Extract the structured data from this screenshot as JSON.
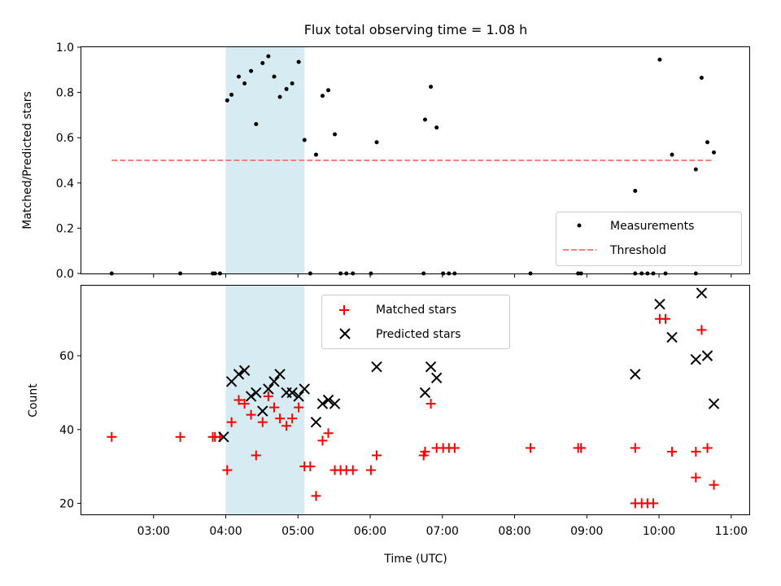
{
  "chart_data": [
    {
      "type": "scatter",
      "title": "Flux total observing time = 1.08 h",
      "xlabel": "",
      "ylabel": "Matched/Predicted stars",
      "xlim": [
        2.0,
        11.25
      ],
      "ylim": [
        0,
        1.0
      ],
      "yticks": [
        0.0,
        0.2,
        0.4,
        0.6,
        0.8,
        1.0
      ],
      "yticklabels": [
        "0.0",
        "0.2",
        "0.4",
        "0.6",
        "0.8",
        "1.0"
      ],
      "xticks": [
        3,
        4,
        5,
        6,
        7,
        8,
        9,
        10,
        11
      ],
      "shaded_span": [
        4.0,
        5.09
      ],
      "shade_color": "#add8e6",
      "legend_location": "lower right",
      "series": [
        {
          "name": "Measurements",
          "marker": "dot",
          "color": "#000000",
          "points": [
            [
              2.42,
              0.0
            ],
            [
              3.37,
              0.0
            ],
            [
              3.82,
              0.0
            ],
            [
              3.85,
              0.0
            ],
            [
              3.92,
              0.0
            ],
            [
              4.02,
              0.765
            ],
            [
              4.08,
              0.79
            ],
            [
              4.18,
              0.87
            ],
            [
              4.26,
              0.84
            ],
            [
              4.35,
              0.895
            ],
            [
              4.42,
              0.66
            ],
            [
              4.51,
              0.93
            ],
            [
              4.59,
              0.96
            ],
            [
              4.67,
              0.87
            ],
            [
              4.75,
              0.78
            ],
            [
              4.84,
              0.815
            ],
            [
              4.92,
              0.84
            ],
            [
              5.01,
              0.935
            ],
            [
              5.09,
              0.59
            ],
            [
              5.17,
              0.0
            ],
            [
              5.25,
              0.525
            ],
            [
              5.34,
              0.785
            ],
            [
              5.42,
              0.81
            ],
            [
              5.51,
              0.615
            ],
            [
              5.59,
              0.0
            ],
            [
              5.67,
              0.0
            ],
            [
              5.76,
              0.0
            ],
            [
              6.01,
              0.0
            ],
            [
              6.09,
              0.58
            ],
            [
              6.74,
              0.0
            ],
            [
              6.76,
              0.68
            ],
            [
              6.84,
              0.825
            ],
            [
              6.92,
              0.645
            ],
            [
              7.01,
              0.0
            ],
            [
              7.09,
              0.0
            ],
            [
              7.17,
              0.0
            ],
            [
              8.22,
              0.0
            ],
            [
              8.88,
              0.0
            ],
            [
              8.92,
              0.0
            ],
            [
              9.67,
              0.365
            ],
            [
              9.67,
              0.0
            ],
            [
              9.76,
              0.0
            ],
            [
              9.84,
              0.0
            ],
            [
              9.92,
              0.0
            ],
            [
              10.01,
              0.945
            ],
            [
              10.09,
              0.0
            ],
            [
              10.18,
              0.525
            ],
            [
              10.51,
              0.46
            ],
            [
              10.51,
              0.0
            ],
            [
              10.59,
              0.865
            ],
            [
              10.67,
              0.58
            ],
            [
              10.76,
              0.535
            ]
          ]
        },
        {
          "name": "Threshold",
          "line_style": "dashed",
          "color": "#ff7f7f",
          "x": [
            2.42,
            10.76
          ],
          "y": [
            0.5,
            0.5
          ]
        }
      ]
    },
    {
      "type": "scatter",
      "title": "",
      "xlabel": "Time (UTC)",
      "ylabel": "Count",
      "xlim": [
        2.0,
        11.25
      ],
      "ylim": [
        17,
        79
      ],
      "yticks": [
        20,
        40,
        60
      ],
      "yticklabels": [
        "20",
        "40",
        "60"
      ],
      "xticks": [
        3,
        4,
        5,
        6,
        7,
        8,
        9,
        10,
        11
      ],
      "xticklabels": [
        "03:00",
        "04:00",
        "05:00",
        "06:00",
        "07:00",
        "08:00",
        "09:00",
        "10:00",
        "11:00"
      ],
      "shaded_span": [
        4.0,
        5.09
      ],
      "shade_color": "#add8e6",
      "legend_location": "upper center",
      "series": [
        {
          "name": "Matched stars",
          "marker": "plus",
          "color": "#ff0000",
          "points": [
            [
              2.42,
              38
            ],
            [
              3.37,
              38
            ],
            [
              3.82,
              38
            ],
            [
              3.85,
              38
            ],
            [
              3.92,
              38
            ],
            [
              4.02,
              29
            ],
            [
              4.08,
              42
            ],
            [
              4.18,
              48
            ],
            [
              4.26,
              47
            ],
            [
              4.35,
              44
            ],
            [
              4.42,
              33
            ],
            [
              4.51,
              42
            ],
            [
              4.59,
              49
            ],
            [
              4.67,
              46
            ],
            [
              4.75,
              43
            ],
            [
              4.84,
              41
            ],
            [
              4.92,
              43
            ],
            [
              5.01,
              46
            ],
            [
              5.09,
              30
            ],
            [
              5.17,
              30
            ],
            [
              5.25,
              22
            ],
            [
              5.34,
              37
            ],
            [
              5.42,
              39
            ],
            [
              5.51,
              29
            ],
            [
              5.59,
              29
            ],
            [
              5.67,
              29
            ],
            [
              5.76,
              29
            ],
            [
              6.01,
              29
            ],
            [
              6.09,
              33
            ],
            [
              6.74,
              33
            ],
            [
              6.76,
              34
            ],
            [
              6.84,
              47
            ],
            [
              6.92,
              35
            ],
            [
              7.01,
              35
            ],
            [
              7.09,
              35
            ],
            [
              7.17,
              35
            ],
            [
              8.22,
              35
            ],
            [
              8.88,
              35
            ],
            [
              8.92,
              35
            ],
            [
              9.67,
              35
            ],
            [
              9.67,
              20
            ],
            [
              9.76,
              20
            ],
            [
              9.84,
              20
            ],
            [
              9.92,
              20
            ],
            [
              10.01,
              70
            ],
            [
              10.09,
              70
            ],
            [
              10.18,
              34
            ],
            [
              10.51,
              34
            ],
            [
              10.51,
              27
            ],
            [
              10.59,
              67
            ],
            [
              10.67,
              35
            ],
            [
              10.76,
              25
            ]
          ]
        },
        {
          "name": "Predicted stars",
          "marker": "x",
          "color": "#000000",
          "points": [
            [
              3.97,
              38
            ],
            [
              4.08,
              53
            ],
            [
              4.18,
              55
            ],
            [
              4.26,
              56
            ],
            [
              4.35,
              49
            ],
            [
              4.42,
              50
            ],
            [
              4.51,
              45
            ],
            [
              4.59,
              51
            ],
            [
              4.67,
              53
            ],
            [
              4.75,
              55
            ],
            [
              4.84,
              50
            ],
            [
              4.92,
              50
            ],
            [
              5.01,
              49
            ],
            [
              5.09,
              51
            ],
            [
              5.25,
              42
            ],
            [
              5.34,
              47
            ],
            [
              5.42,
              48
            ],
            [
              5.51,
              47
            ],
            [
              6.09,
              57
            ],
            [
              6.76,
              50
            ],
            [
              6.84,
              57
            ],
            [
              6.92,
              54
            ],
            [
              9.67,
              55
            ],
            [
              10.01,
              74
            ],
            [
              10.18,
              65
            ],
            [
              10.51,
              59
            ],
            [
              10.59,
              77
            ],
            [
              10.67,
              60
            ],
            [
              10.76,
              47
            ]
          ]
        }
      ]
    }
  ]
}
